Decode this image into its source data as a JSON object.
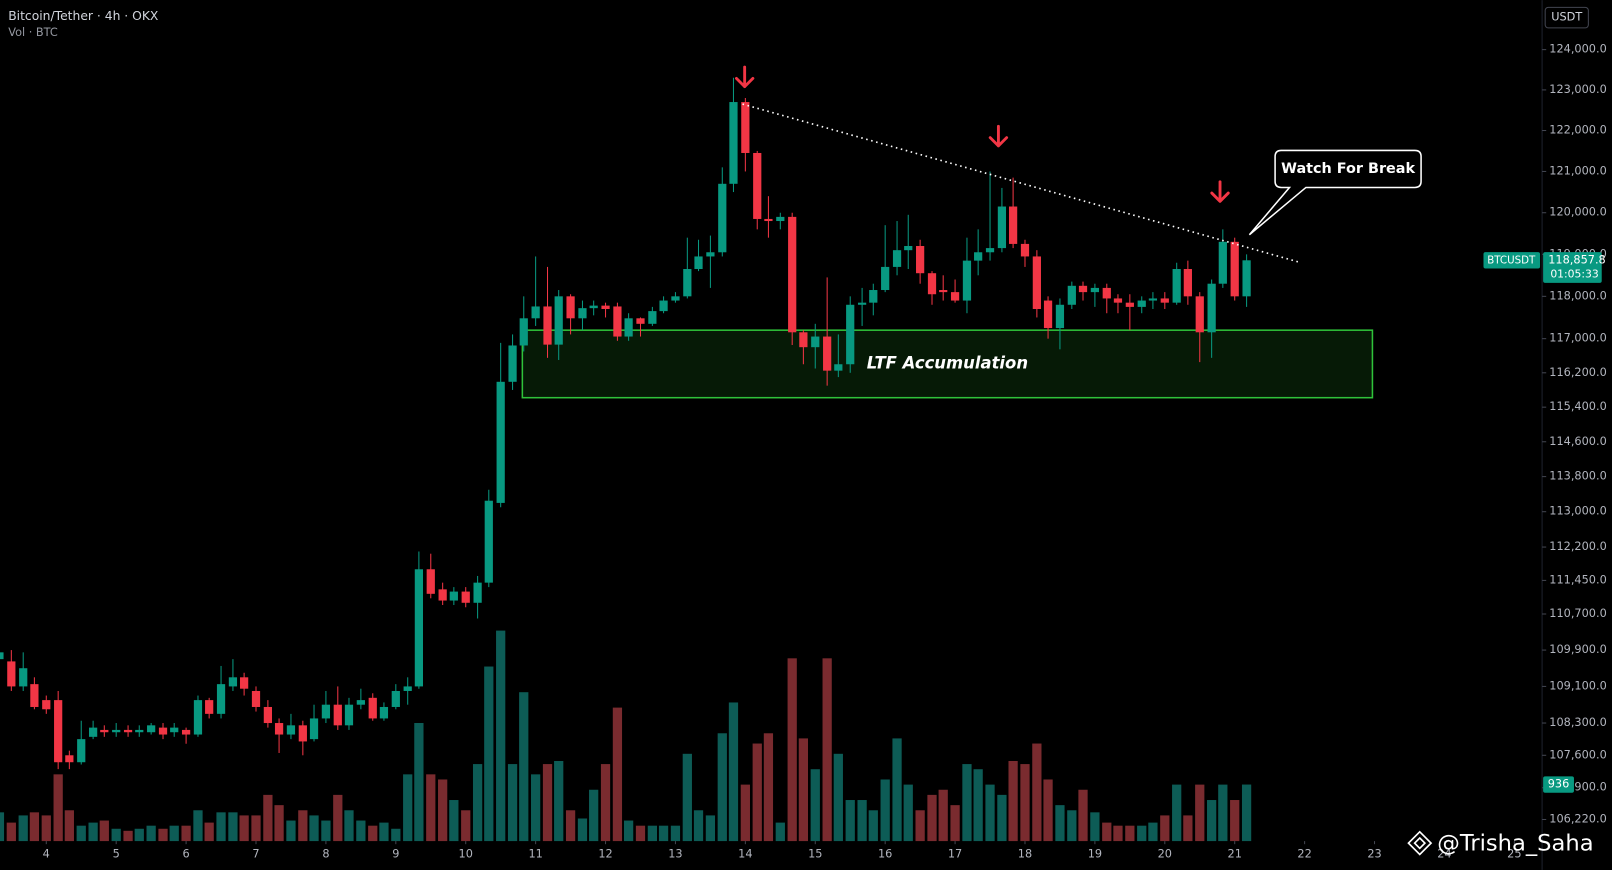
{
  "chart_data": {
    "type": "candlestick",
    "title": "Bitcoin/Tether · 4h · OKX",
    "subtitle": "Vol · BTC",
    "currency": "USDT",
    "symbol": "BTCUSDT",
    "last_price": {
      "value": 118857.8,
      "label": "118,857.8"
    },
    "countdown": "01:05:33",
    "watermark": "@Trisha_Saha",
    "up_color": "#089981",
    "down_color": "#f23645",
    "volume_up_color": "#0d5c56",
    "volume_down_color": "#7a2b2f",
    "log_scale": true,
    "grid": false,
    "x": [
      3.33,
      3.5,
      3.67,
      3.83,
      4,
      4.17,
      4.33,
      4.5,
      4.67,
      4.83,
      5,
      5.17,
      5.33,
      5.5,
      5.67,
      5.83,
      6,
      6.17,
      6.33,
      6.5,
      6.67,
      6.83,
      7,
      7.17,
      7.33,
      7.5,
      7.67,
      7.83,
      8,
      8.17,
      8.33,
      8.5,
      8.67,
      8.83,
      9,
      9.17,
      9.33,
      9.5,
      9.67,
      9.83,
      10,
      10.17,
      10.33,
      10.5,
      10.67,
      10.83,
      11,
      11.17,
      11.33,
      11.5,
      11.67,
      11.83,
      12,
      12.17,
      12.33,
      12.5,
      12.67,
      12.83,
      13,
      13.17,
      13.33,
      13.5,
      13.67,
      13.83,
      14,
      14.17,
      14.33,
      14.5,
      14.67,
      14.83,
      15,
      15.17,
      15.33,
      15.5,
      15.67,
      15.83,
      16,
      16.17,
      16.33,
      16.5,
      16.67,
      16.83,
      17,
      17.17,
      17.33,
      17.5,
      17.67,
      17.83,
      18,
      18.17,
      18.33,
      18.5,
      18.67,
      18.83,
      19,
      19.17,
      19.33,
      19.5,
      19.67,
      19.83,
      20,
      20.17,
      20.33,
      20.5,
      20.67,
      20.83,
      21,
      21.17
    ],
    "open": [
      109700,
      109650,
      109100,
      109150,
      108800,
      108800,
      107600,
      107450,
      108000,
      108150,
      108100,
      108150,
      108100,
      108100,
      108200,
      108100,
      108150,
      108050,
      108800,
      108500,
      109100,
      109300,
      109000,
      108650,
      108300,
      108050,
      108250,
      107950,
      108400,
      108700,
      108250,
      108700,
      108850,
      108400,
      108650,
      109000,
      109100,
      111700,
      111250,
      111000,
      111200,
      110950,
      111400,
      113200,
      115990,
      116840,
      117480,
      117760,
      116860,
      118000,
      117480,
      117720,
      117780,
      117760,
      117050,
      117480,
      117350,
      117650,
      117900,
      118000,
      118650,
      118950,
      119050,
      120700,
      122700,
      121450,
      119850,
      119800,
      119900,
      117150,
      116800,
      117050,
      116250,
      116400,
      117800,
      117850,
      118150,
      118700,
      119100,
      119200,
      118550,
      118150,
      118100,
      117900,
      118850,
      119050,
      119150,
      120150,
      119250,
      118950,
      117900,
      117250,
      117800,
      118250,
      118100,
      118200,
      117950,
      117850,
      117750,
      117900,
      117950,
      117850,
      118650,
      118000,
      117150,
      118300,
      119300,
      118000
    ],
    "high": [
      109950,
      109900,
      109850,
      109300,
      108900,
      109000,
      107700,
      108350,
      108350,
      108250,
      108300,
      108250,
      108250,
      108300,
      108300,
      108300,
      108200,
      108900,
      108850,
      109550,
      109700,
      109400,
      109100,
      108800,
      108400,
      108500,
      108350,
      108700,
      109000,
      109100,
      108850,
      109050,
      108950,
      108750,
      109150,
      109300,
      112100,
      112050,
      111400,
      111300,
      111300,
      111550,
      113500,
      116900,
      117100,
      118000,
      118950,
      118700,
      118150,
      118050,
      117900,
      117900,
      117850,
      117850,
      117600,
      117500,
      117750,
      118000,
      118100,
      119400,
      119350,
      119450,
      121100,
      123300,
      122800,
      121500,
      120400,
      120000,
      120000,
      117200,
      117350,
      118450,
      117100,
      118000,
      118200,
      118300,
      119700,
      119800,
      119950,
      119350,
      118600,
      118500,
      118400,
      119400,
      119600,
      121000,
      120600,
      120850,
      119350,
      119100,
      118000,
      117950,
      118350,
      118350,
      118300,
      118300,
      118050,
      118050,
      118000,
      118100,
      118100,
      118800,
      118850,
      118100,
      118400,
      119600,
      119400,
      119000
    ],
    "low": [
      109600,
      109000,
      109000,
      108600,
      108500,
      107300,
      107300,
      107400,
      107950,
      108000,
      108000,
      108000,
      108000,
      108050,
      107950,
      108000,
      107850,
      108000,
      108400,
      108400,
      109000,
      108900,
      108550,
      108200,
      107650,
      107950,
      107600,
      107900,
      108300,
      108150,
      108150,
      108600,
      108350,
      108350,
      108600,
      108700,
      109050,
      111050,
      110900,
      110900,
      110850,
      110600,
      111300,
      113100,
      115800,
      116700,
      117300,
      116550,
      116500,
      117100,
      117200,
      117550,
      117500,
      116950,
      116950,
      117050,
      117300,
      117600,
      117850,
      117950,
      118600,
      118200,
      118950,
      120500,
      121000,
      119600,
      119400,
      119600,
      116850,
      116400,
      116300,
      115900,
      116100,
      116200,
      117300,
      117550,
      118100,
      118500,
      118650,
      118300,
      117800,
      117900,
      117850,
      117600,
      118500,
      118850,
      119050,
      119150,
      118700,
      117500,
      117000,
      116750,
      117700,
      117900,
      117750,
      117600,
      117600,
      117200,
      117600,
      117700,
      117700,
      117800,
      117800,
      116450,
      116550,
      118200,
      117900,
      117750
    ],
    "close": [
      109850,
      109100,
      109500,
      108650,
      108600,
      107450,
      107450,
      107950,
      108200,
      108100,
      108150,
      108100,
      108150,
      108250,
      108050,
      108200,
      108050,
      108800,
      108500,
      109150,
      109300,
      109050,
      108650,
      108300,
      108050,
      108250,
      107900,
      108400,
      108700,
      108250,
      108700,
      108800,
      108400,
      108650,
      109000,
      109100,
      111700,
      111150,
      111000,
      111200,
      110950,
      111400,
      113250,
      115990,
      116840,
      117480,
      117760,
      116860,
      118000,
      117480,
      117720,
      117780,
      117700,
      117050,
      117480,
      117350,
      117650,
      117900,
      118000,
      118650,
      118950,
      119050,
      120700,
      122700,
      121450,
      119850,
      119800,
      119900,
      117150,
      116800,
      117050,
      116250,
      116400,
      117800,
      117850,
      118150,
      118700,
      119100,
      119200,
      118550,
      118050,
      118100,
      117900,
      118850,
      119050,
      119150,
      120150,
      119250,
      118950,
      117700,
      117250,
      117800,
      118250,
      118100,
      118200,
      117950,
      117850,
      117750,
      117900,
      117950,
      117850,
      118650,
      118000,
      117150,
      118300,
      119300,
      118000,
      118857.8
    ],
    "volume": [
      476,
      306,
      425,
      476,
      425,
      1105,
      510,
      255,
      306,
      340,
      204,
      170,
      204,
      255,
      204,
      255,
      255,
      510,
      306,
      476,
      476,
      425,
      425,
      765,
      595,
      340,
      510,
      425,
      340,
      765,
      510,
      340,
      255,
      306,
      204,
      1105,
      1955,
      1105,
      1020,
      680,
      510,
      1275,
      2890,
      3485,
      1275,
      2465,
      1105,
      1275,
      1326,
      510,
      374,
      850,
      1275,
      2210,
      340,
      255,
      255,
      255,
      255,
      1445,
      510,
      425,
      1785,
      2295,
      935,
      1615,
      1785,
      306,
      3026,
      1700,
      1190,
      3026,
      1445,
      680,
      680,
      510,
      1020,
      1700,
      935,
      510,
      765,
      850,
      595,
      1275,
      1190,
      935,
      765,
      1326,
      1275,
      1615,
      1020,
      595,
      510,
      850,
      476,
      306,
      255,
      255,
      255,
      306,
      425,
      935,
      425,
      935,
      680,
      935,
      680,
      936
    ],
    "xlim": [
      3.338,
      25.397
    ],
    "xticks": [
      4,
      5,
      6,
      7,
      8,
      9,
      10,
      11,
      12,
      13,
      14,
      15,
      16,
      17,
      18,
      19,
      20,
      21,
      22,
      23,
      24,
      25
    ],
    "ylim": [
      105760,
      125240
    ],
    "yticks": [
      {
        "value": 124000,
        "label": "124,000.0"
      },
      {
        "value": 123000,
        "label": "123,000.0"
      },
      {
        "value": 122000,
        "label": "122,000.0"
      },
      {
        "value": 121000,
        "label": "121,000.0"
      },
      {
        "value": 120000,
        "label": "120,000.0"
      },
      {
        "value": 119000,
        "label": "119,000.0"
      },
      {
        "value": 118000,
        "label": "118,000.0"
      },
      {
        "value": 117000,
        "label": "117,000.0"
      },
      {
        "value": 116200,
        "label": "116,200.0"
      },
      {
        "value": 115400,
        "label": "115,400.0"
      },
      {
        "value": 114600,
        "label": "114,600.0"
      },
      {
        "value": 113800,
        "label": "113,800.0"
      },
      {
        "value": 113000,
        "label": "113,000.0"
      },
      {
        "value": 112200,
        "label": "112,200.0"
      },
      {
        "value": 111450,
        "label": "111,450.0"
      },
      {
        "value": 110700,
        "label": "110,700.0"
      },
      {
        "value": 109900,
        "label": "109,900.0"
      },
      {
        "value": 109100,
        "label": "109,100.0"
      },
      {
        "value": 108300,
        "label": "108,300.0"
      },
      {
        "value": 107600,
        "label": "107,600.0"
      },
      {
        "value": 106900,
        "label": "106,900.0"
      },
      {
        "value": 106220,
        "label": "106,220.0"
      }
    ],
    "volume_ylim": [
      0,
      4000
    ],
    "annotations": {
      "trendline": [
        {
          "x": 13.96,
          "y": 122650
        },
        {
          "x": 21.95,
          "y": 118800
        }
      ],
      "arrows": [
        {
          "x": 13.99,
          "y": 123310
        },
        {
          "x": 17.62,
          "y": 121850
        },
        {
          "x": 20.79,
          "y": 120500
        }
      ],
      "zone": {
        "label": "LTF Accumulation",
        "x": [
          10.81,
          22.97
        ],
        "y": [
          115620,
          117200
        ]
      },
      "callout": {
        "label": "Watch For Break",
        "x": 21.21,
        "y": 119470
      }
    }
  }
}
